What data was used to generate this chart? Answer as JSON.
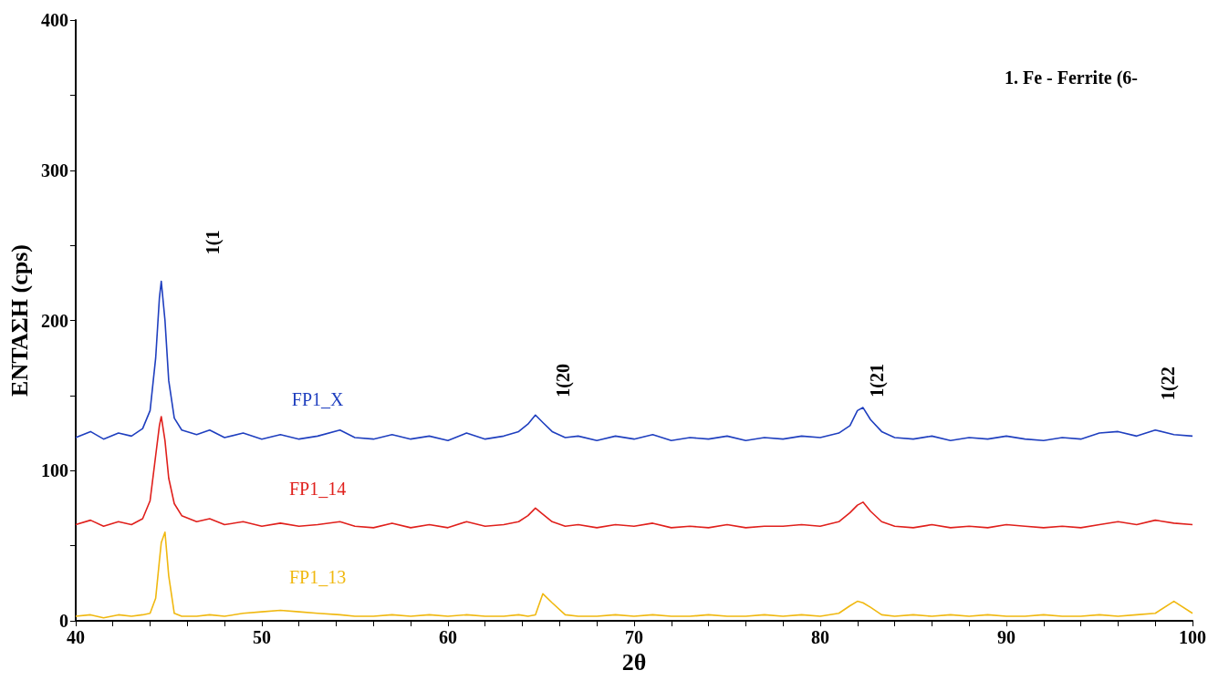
{
  "chart_data": {
    "type": "line",
    "xlabel": "2θ",
    "ylabel": "ΕΝΤΑΣΗ (cps)",
    "x": [
      40,
      40.8,
      41.5,
      42.3,
      43,
      43.6,
      44.0,
      44.3,
      44.5,
      44.6,
      44.8,
      45.0,
      45.3,
      45.7,
      46.5,
      47.2,
      48,
      49,
      50,
      51,
      52,
      53,
      54.2,
      55,
      56,
      57,
      58,
      59,
      60,
      61,
      62,
      63,
      63.8,
      64.3,
      64.7,
      65.1,
      65.6,
      66.3,
      67,
      68,
      69,
      70,
      71,
      72,
      73,
      74,
      75,
      76,
      77,
      78,
      79,
      80,
      81,
      81.6,
      82.0,
      82.3,
      82.7,
      83.3,
      84,
      85,
      86,
      87,
      88,
      89,
      90,
      91,
      92,
      93,
      94,
      95,
      96,
      97,
      98,
      99,
      100
    ],
    "series": [
      {
        "name": "FP1_X",
        "color": "#1f3fbf",
        "values": [
          122,
          126,
          121,
          125,
          123,
          128,
          140,
          175,
          215,
          226,
          200,
          160,
          135,
          127,
          124,
          127,
          122,
          125,
          121,
          124,
          121,
          123,
          127,
          122,
          121,
          124,
          121,
          123,
          120,
          125,
          121,
          123,
          126,
          131,
          137,
          132,
          126,
          122,
          123,
          120,
          123,
          121,
          124,
          120,
          122,
          121,
          123,
          120,
          122,
          121,
          123,
          122,
          125,
          130,
          140,
          142,
          134,
          126,
          122,
          121,
          123,
          120,
          122,
          121,
          123,
          121,
          120,
          122,
          121,
          125,
          126,
          123,
          127,
          124,
          123
        ]
      },
      {
        "name": "FP1_14",
        "color": "#e0201c",
        "values": [
          64,
          67,
          63,
          66,
          64,
          68,
          80,
          110,
          130,
          136,
          120,
          95,
          78,
          70,
          66,
          68,
          64,
          66,
          63,
          65,
          63,
          64,
          66,
          63,
          62,
          65,
          62,
          64,
          62,
          66,
          63,
          64,
          66,
          70,
          75,
          71,
          66,
          63,
          64,
          62,
          64,
          63,
          65,
          62,
          63,
          62,
          64,
          62,
          63,
          63,
          64,
          63,
          66,
          72,
          77,
          79,
          73,
          66,
          63,
          62,
          64,
          62,
          63,
          62,
          64,
          63,
          62,
          63,
          62,
          64,
          66,
          64,
          67,
          65,
          64
        ]
      },
      {
        "name": "FP1_13",
        "color": "#f0b810",
        "values": [
          3,
          4,
          2,
          4,
          3,
          4,
          5,
          15,
          40,
          52,
          59,
          30,
          5,
          3,
          3,
          4,
          3,
          5,
          6,
          7,
          6,
          5,
          4,
          3,
          3,
          4,
          3,
          4,
          3,
          4,
          3,
          3,
          4,
          3,
          4,
          18,
          12,
          4,
          3,
          3,
          4,
          3,
          4,
          3,
          3,
          4,
          3,
          3,
          4,
          3,
          4,
          3,
          5,
          10,
          13,
          12,
          9,
          4,
          3,
          4,
          3,
          4,
          3,
          4,
          3,
          3,
          4,
          3,
          3,
          4,
          3,
          4,
          5,
          13,
          5
        ]
      }
    ],
    "xlim": [
      40,
      100
    ],
    "xticks": [
      40,
      {
        "value": 42,
        "label": null
      },
      {
        "value": 44,
        "label": null
      },
      {
        "value": 46,
        "label": null
      },
      {
        "value": 48,
        "label": null
      },
      50,
      {
        "value": 52,
        "label": null
      },
      {
        "value": 54,
        "label": null
      },
      {
        "value": 56,
        "label": null
      },
      {
        "value": 58,
        "label": null
      },
      60,
      {
        "value": 62,
        "label": null
      },
      {
        "value": 64,
        "label": null
      },
      {
        "value": 66,
        "label": null
      },
      {
        "value": 68,
        "label": null
      },
      70,
      {
        "value": 72,
        "label": null
      },
      {
        "value": 74,
        "label": null
      },
      {
        "value": 76,
        "label": null
      },
      {
        "value": 78,
        "label": null
      },
      80,
      {
        "value": 82,
        "label": null
      },
      {
        "value": 84,
        "label": null
      },
      {
        "value": 86,
        "label": null
      },
      {
        "value": 88,
        "label": null
      },
      90,
      {
        "value": 92,
        "label": null
      },
      {
        "value": 94,
        "label": null
      },
      {
        "value": 96,
        "label": null
      },
      {
        "value": 98,
        "label": null
      },
      100
    ],
    "ylim": [
      0,
      400
    ],
    "yticks": [
      0,
      {
        "value": 50,
        "label": null
      },
      100,
      {
        "value": 150,
        "label": null
      },
      200,
      {
        "value": 250,
        "label": null
      },
      300,
      {
        "value": 350,
        "label": null
      },
      400
    ],
    "grid": false,
    "legend": false,
    "marker": "none",
    "line_style": "solid",
    "annotations": [
      "1(1",
      "1(20",
      "1(21",
      "1(22",
      "1. Fe - Ferrite (6-"
    ]
  }
}
